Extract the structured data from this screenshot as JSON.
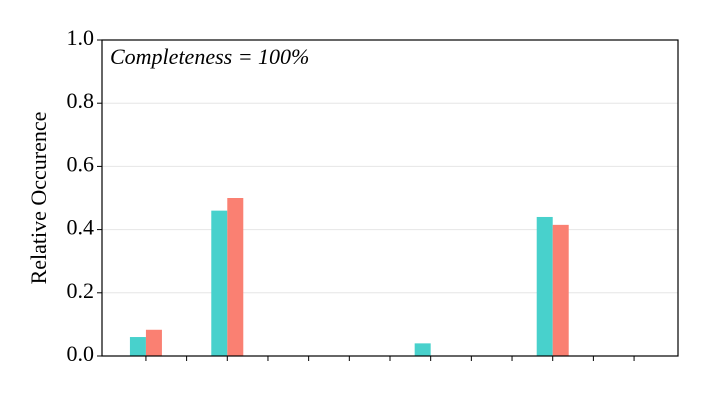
{
  "chart_data": {
    "type": "bar",
    "annotation": "Completeness = 100%",
    "y_label": "Relative Occurence",
    "categories": [
      null,
      null,
      null,
      null,
      null,
      null,
      null,
      null,
      null,
      null,
      null,
      null,
      null
    ],
    "series": [
      {
        "color": "#48d1cc",
        "values": [
          0.06,
          0,
          0.46,
          0,
          0,
          0,
          0,
          0.04,
          0,
          0,
          0.44,
          0,
          0
        ]
      },
      {
        "color": "#fa8072",
        "values": [
          0.083,
          0,
          0.5,
          0,
          0,
          0,
          0,
          0,
          0,
          0,
          0.415,
          0,
          0
        ]
      }
    ],
    "ylim": [
      0,
      1
    ],
    "yticks": [
      {
        "value": 0,
        "label": "0.0"
      },
      0.2,
      0.4,
      0.6,
      0.8,
      {
        "value": 1,
        "label": "1.0"
      }
    ],
    "grid": true
  }
}
